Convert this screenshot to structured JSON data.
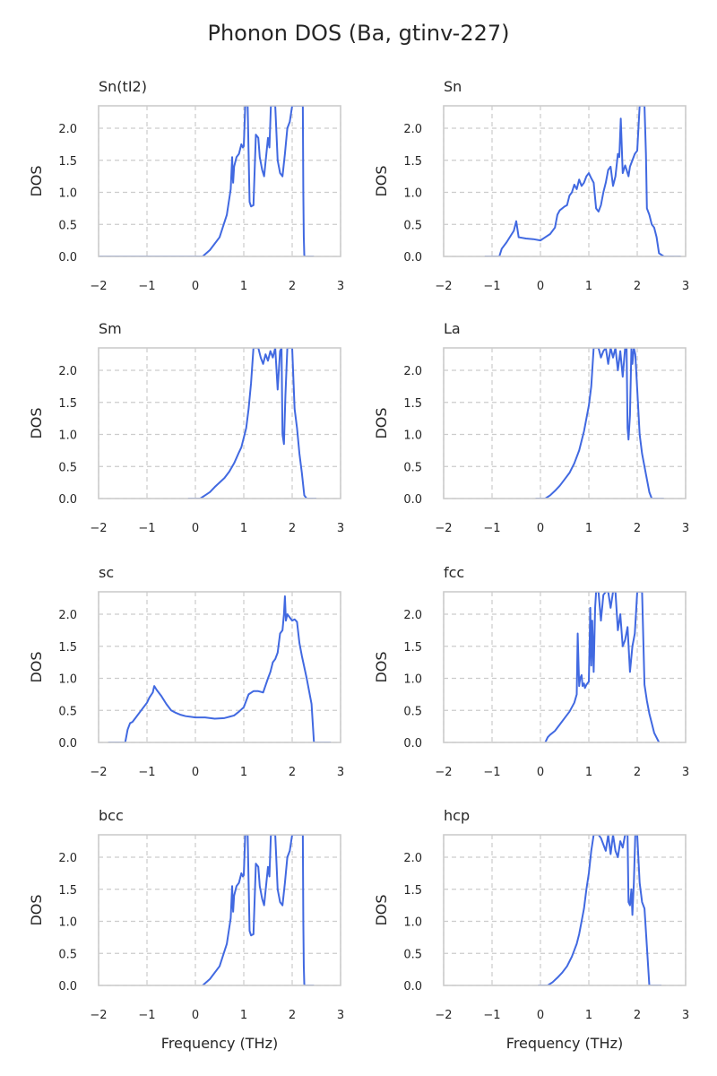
{
  "title": "Phonon DOS (Ba, gtinv-227)",
  "colors": {
    "line": "#4169e1",
    "grid": "#cccccc",
    "frame": "#cccccc",
    "text": "#262626"
  },
  "chart_data": [
    {
      "type": "line",
      "title": "Sn(tI2)",
      "xlabel": "",
      "ylabel": "DOS",
      "xlim": [
        -2,
        3
      ],
      "ylim": [
        0,
        2.35
      ],
      "xticks": [
        -2,
        -1,
        0,
        1,
        2,
        3
      ],
      "yticks": [
        0.0,
        0.5,
        1.0,
        1.5,
        2.0
      ],
      "xtick_labels": [
        "−2",
        "−1",
        "0",
        "1",
        "2",
        "3"
      ],
      "ytick_labels": [
        "0.0",
        "0.5",
        "1.0",
        "1.5",
        "2.0"
      ],
      "grid": true,
      "series": [
        {
          "x": [
            -2.0,
            0.15,
            0.3,
            0.5,
            0.65,
            0.73,
            0.76,
            0.77,
            0.78,
            0.8,
            0.85,
            0.9,
            0.95,
            0.98,
            1.0,
            1.03,
            1.06,
            1.08,
            1.1,
            1.12,
            1.15,
            1.2,
            1.25,
            1.3,
            1.33,
            1.38,
            1.42,
            1.46,
            1.5,
            1.53,
            1.56,
            1.6,
            1.65,
            1.7,
            1.75,
            1.8,
            1.85,
            1.9,
            1.95,
            2.0,
            2.05,
            2.1,
            2.15,
            2.2,
            2.22,
            2.23,
            2.24,
            2.25,
            2.26,
            2.3,
            2.45
          ],
          "y": [
            0.0,
            0.0,
            0.1,
            0.3,
            0.65,
            1.05,
            1.55,
            1.3,
            1.15,
            1.4,
            1.55,
            1.6,
            1.75,
            1.7,
            1.72,
            2.35,
            2.35,
            2.35,
            1.6,
            0.85,
            0.78,
            0.8,
            1.9,
            1.85,
            1.55,
            1.35,
            1.25,
            1.55,
            1.85,
            1.7,
            2.35,
            2.35,
            2.35,
            1.5,
            1.3,
            1.25,
            1.6,
            2.0,
            2.1,
            2.35,
            2.35,
            2.35,
            2.35,
            2.35,
            2.35,
            1.0,
            0.3,
            0.02,
            0.0,
            0.0,
            0.0
          ]
        }
      ]
    },
    {
      "type": "line",
      "title": "Sn",
      "xlabel": "",
      "ylabel": "DOS",
      "xlim": [
        -2,
        3
      ],
      "ylim": [
        0,
        2.35
      ],
      "xticks": [
        -2,
        -1,
        0,
        1,
        2,
        3
      ],
      "yticks": [
        0.0,
        0.5,
        1.0,
        1.5,
        2.0
      ],
      "xtick_labels": [
        "−2",
        "−1",
        "0",
        "1",
        "2",
        "3"
      ],
      "ytick_labels": [
        "0.0",
        "0.5",
        "1.0",
        "1.5",
        "2.0"
      ],
      "grid": true,
      "series": [
        {
          "x": [
            -1.15,
            -0.85,
            -0.8,
            -0.7,
            -0.55,
            -0.5,
            -0.45,
            -0.3,
            -0.15,
            0.0,
            0.1,
            0.2,
            0.3,
            0.35,
            0.4,
            0.5,
            0.55,
            0.6,
            0.65,
            0.7,
            0.75,
            0.8,
            0.85,
            0.9,
            0.95,
            1.0,
            1.05,
            1.1,
            1.15,
            1.2,
            1.25,
            1.3,
            1.35,
            1.4,
            1.45,
            1.5,
            1.55,
            1.6,
            1.63,
            1.66,
            1.7,
            1.75,
            1.78,
            1.8,
            1.82,
            1.85,
            1.9,
            1.95,
            2.0,
            2.05,
            2.1,
            2.15,
            2.18,
            2.2,
            2.25,
            2.3,
            2.35,
            2.4,
            2.45,
            2.55,
            2.9
          ],
          "y": [
            0.0,
            0.0,
            0.12,
            0.22,
            0.4,
            0.55,
            0.3,
            0.28,
            0.27,
            0.25,
            0.3,
            0.35,
            0.45,
            0.65,
            0.72,
            0.78,
            0.8,
            0.95,
            1.0,
            1.12,
            1.05,
            1.2,
            1.1,
            1.15,
            1.25,
            1.3,
            1.22,
            1.15,
            0.75,
            0.7,
            0.8,
            1.0,
            1.15,
            1.35,
            1.4,
            1.1,
            1.25,
            1.6,
            1.55,
            2.15,
            1.3,
            1.42,
            1.35,
            1.3,
            1.25,
            1.4,
            1.5,
            1.6,
            1.65,
            2.35,
            2.35,
            2.35,
            1.6,
            0.75,
            0.65,
            0.5,
            0.45,
            0.3,
            0.05,
            0.0,
            0.0
          ]
        }
      ]
    },
    {
      "type": "line",
      "title": "Sm",
      "xlabel": "",
      "ylabel": "DOS",
      "xlim": [
        -2,
        3
      ],
      "ylim": [
        0,
        2.35
      ],
      "xticks": [
        -2,
        -1,
        0,
        1,
        2,
        3
      ],
      "yticks": [
        0.0,
        0.5,
        1.0,
        1.5,
        2.0
      ],
      "xtick_labels": [
        "−2",
        "−1",
        "0",
        "1",
        "2",
        "3"
      ],
      "ytick_labels": [
        "0.0",
        "0.5",
        "1.0",
        "1.5",
        "2.0"
      ],
      "grid": true,
      "series": [
        {
          "x": [
            -0.15,
            0.1,
            0.2,
            0.3,
            0.4,
            0.5,
            0.6,
            0.7,
            0.8,
            0.9,
            0.95,
            1.0,
            1.05,
            1.1,
            1.15,
            1.2,
            1.25,
            1.3,
            1.35,
            1.4,
            1.45,
            1.5,
            1.55,
            1.6,
            1.65,
            1.7,
            1.75,
            1.78,
            1.8,
            1.83,
            1.86,
            1.9,
            1.95,
            2.0,
            2.05,
            2.1,
            2.15,
            2.2,
            2.25,
            2.3,
            2.5
          ],
          "y": [
            0.0,
            0.0,
            0.05,
            0.1,
            0.18,
            0.25,
            0.32,
            0.42,
            0.55,
            0.72,
            0.8,
            0.95,
            1.1,
            1.4,
            1.8,
            2.35,
            2.35,
            2.35,
            2.2,
            2.1,
            2.25,
            2.15,
            2.3,
            2.2,
            2.35,
            1.7,
            2.3,
            2.35,
            1.0,
            0.85,
            1.6,
            2.35,
            2.35,
            2.35,
            1.4,
            1.1,
            0.7,
            0.4,
            0.05,
            0.0,
            0.0
          ]
        }
      ]
    },
    {
      "type": "line",
      "title": "La",
      "xlabel": "",
      "ylabel": "DOS",
      "xlim": [
        -2,
        3
      ],
      "ylim": [
        0,
        2.35
      ],
      "xticks": [
        -2,
        -1,
        0,
        1,
        2,
        3
      ],
      "yticks": [
        0.0,
        0.5,
        1.0,
        1.5,
        2.0
      ],
      "xtick_labels": [
        "−2",
        "−1",
        "0",
        "1",
        "2",
        "3"
      ],
      "ytick_labels": [
        "0.0",
        "0.5",
        "1.0",
        "1.5",
        "2.0"
      ],
      "grid": true,
      "series": [
        {
          "x": [
            -0.1,
            0.1,
            0.2,
            0.3,
            0.4,
            0.5,
            0.6,
            0.7,
            0.8,
            0.85,
            0.9,
            0.95,
            1.0,
            1.05,
            1.1,
            1.15,
            1.2,
            1.25,
            1.3,
            1.35,
            1.4,
            1.45,
            1.5,
            1.55,
            1.6,
            1.65,
            1.7,
            1.75,
            1.78,
            1.8,
            1.82,
            1.85,
            1.88,
            1.9,
            1.93,
            1.96,
            2.0,
            2.05,
            2.1,
            2.15,
            2.2,
            2.25,
            2.3,
            2.55
          ],
          "y": [
            0.0,
            0.0,
            0.05,
            0.12,
            0.2,
            0.3,
            0.4,
            0.55,
            0.75,
            0.9,
            1.05,
            1.25,
            1.45,
            1.75,
            2.35,
            2.35,
            2.35,
            2.2,
            2.3,
            2.35,
            2.1,
            2.35,
            2.2,
            2.35,
            2.0,
            2.3,
            1.9,
            2.35,
            2.35,
            1.1,
            0.92,
            1.3,
            2.35,
            2.1,
            2.35,
            2.25,
            1.7,
            1.0,
            0.7,
            0.5,
            0.3,
            0.1,
            0.0,
            0.0
          ]
        }
      ]
    },
    {
      "type": "line",
      "title": "sc",
      "xlabel": "",
      "ylabel": "DOS",
      "xlim": [
        -2,
        3
      ],
      "ylim": [
        0,
        2.35
      ],
      "xticks": [
        -2,
        -1,
        0,
        1,
        2,
        3
      ],
      "yticks": [
        0.0,
        0.5,
        1.0,
        1.5,
        2.0
      ],
      "xtick_labels": [
        "−2",
        "−1",
        "0",
        "1",
        "2",
        "3"
      ],
      "ytick_labels": [
        "0.0",
        "0.5",
        "1.0",
        "1.5",
        "2.0"
      ],
      "grid": true,
      "series": [
        {
          "x": [
            -1.8,
            -1.45,
            -1.4,
            -1.35,
            -1.3,
            -1.2,
            -1.1,
            -1.0,
            -0.95,
            -0.88,
            -0.85,
            -0.8,
            -0.7,
            -0.6,
            -0.5,
            -0.4,
            -0.3,
            -0.2,
            -0.1,
            0.0,
            0.2,
            0.4,
            0.6,
            0.7,
            0.8,
            0.9,
            1.0,
            1.05,
            1.1,
            1.2,
            1.3,
            1.4,
            1.5,
            1.55,
            1.6,
            1.65,
            1.7,
            1.75,
            1.8,
            1.83,
            1.85,
            1.87,
            1.9,
            1.95,
            2.0,
            2.05,
            2.1,
            2.15,
            2.2,
            2.3,
            2.4,
            2.45,
            2.8
          ],
          "y": [
            0.0,
            0.0,
            0.2,
            0.3,
            0.32,
            0.42,
            0.52,
            0.62,
            0.7,
            0.78,
            0.88,
            0.82,
            0.72,
            0.6,
            0.5,
            0.46,
            0.43,
            0.41,
            0.4,
            0.39,
            0.39,
            0.37,
            0.38,
            0.4,
            0.42,
            0.48,
            0.55,
            0.65,
            0.75,
            0.8,
            0.8,
            0.78,
            1.0,
            1.1,
            1.25,
            1.3,
            1.4,
            1.7,
            1.75,
            2.0,
            2.28,
            1.9,
            2.0,
            1.95,
            1.9,
            1.92,
            1.88,
            1.55,
            1.35,
            1.0,
            0.6,
            0.0,
            0.0
          ]
        }
      ]
    },
    {
      "type": "line",
      "title": "fcc",
      "xlabel": "",
      "ylabel": "DOS",
      "xlim": [
        -2,
        3
      ],
      "ylim": [
        0,
        2.35
      ],
      "xticks": [
        -2,
        -1,
        0,
        1,
        2,
        3
      ],
      "yticks": [
        0.0,
        0.5,
        1.0,
        1.5,
        2.0
      ],
      "xtick_labels": [
        "−2",
        "−1",
        "0",
        "1",
        "2",
        "3"
      ],
      "ytick_labels": [
        "0.0",
        "0.5",
        "1.0",
        "1.5",
        "2.0"
      ],
      "grid": true,
      "series": [
        {
          "x": [
            0.1,
            0.15,
            0.2,
            0.3,
            0.4,
            0.5,
            0.6,
            0.7,
            0.75,
            0.77,
            0.8,
            0.82,
            0.85,
            0.87,
            0.9,
            0.92,
            0.95,
            1.0,
            1.03,
            1.05,
            1.07,
            1.1,
            1.13,
            1.15,
            1.2,
            1.25,
            1.3,
            1.35,
            1.4,
            1.45,
            1.5,
            1.55,
            1.6,
            1.65,
            1.7,
            1.75,
            1.8,
            1.85,
            1.9,
            1.95,
            2.0,
            2.05,
            2.1,
            2.15,
            2.2,
            2.25,
            2.3,
            2.35,
            2.45
          ],
          "y": [
            0.0,
            0.08,
            0.12,
            0.18,
            0.28,
            0.38,
            0.48,
            0.62,
            0.75,
            1.7,
            0.88,
            1.0,
            1.05,
            0.88,
            0.92,
            0.85,
            0.9,
            0.95,
            2.1,
            1.2,
            1.9,
            1.1,
            2.1,
            2.35,
            2.35,
            1.9,
            2.3,
            2.35,
            2.35,
            2.1,
            2.35,
            2.35,
            1.75,
            2.0,
            1.5,
            1.6,
            1.8,
            1.1,
            1.5,
            1.7,
            2.35,
            2.35,
            2.35,
            0.9,
            0.65,
            0.45,
            0.3,
            0.15,
            0.0
          ]
        }
      ]
    },
    {
      "type": "line",
      "title": "bcc",
      "xlabel": "Frequency (THz)",
      "ylabel": "DOS",
      "xlim": [
        -2,
        3
      ],
      "ylim": [
        0,
        2.35
      ],
      "xticks": [
        -2,
        -1,
        0,
        1,
        2,
        3
      ],
      "yticks": [
        0.0,
        0.5,
        1.0,
        1.5,
        2.0
      ],
      "xtick_labels": [
        "−2",
        "−1",
        "0",
        "1",
        "2",
        "3"
      ],
      "ytick_labels": [
        "0.0",
        "0.5",
        "1.0",
        "1.5",
        "2.0"
      ],
      "grid": true,
      "series": [
        {
          "x": [
            0.15,
            0.3,
            0.5,
            0.65,
            0.73,
            0.76,
            0.77,
            0.78,
            0.8,
            0.85,
            0.9,
            0.95,
            0.98,
            1.0,
            1.03,
            1.06,
            1.08,
            1.1,
            1.12,
            1.15,
            1.2,
            1.25,
            1.3,
            1.33,
            1.38,
            1.42,
            1.46,
            1.5,
            1.53,
            1.56,
            1.6,
            1.65,
            1.7,
            1.75,
            1.8,
            1.85,
            1.9,
            1.95,
            2.0,
            2.05,
            2.1,
            2.15,
            2.2,
            2.22,
            2.23,
            2.24,
            2.25,
            2.26,
            2.3,
            2.45
          ],
          "y": [
            0.0,
            0.1,
            0.3,
            0.65,
            1.05,
            1.55,
            1.3,
            1.15,
            1.4,
            1.55,
            1.6,
            1.75,
            1.7,
            1.72,
            2.35,
            2.35,
            2.35,
            1.6,
            0.85,
            0.78,
            0.8,
            1.9,
            1.85,
            1.55,
            1.35,
            1.25,
            1.55,
            1.85,
            1.7,
            2.35,
            2.35,
            2.35,
            1.5,
            1.3,
            1.25,
            1.6,
            2.0,
            2.1,
            2.35,
            2.35,
            2.35,
            2.35,
            2.35,
            2.35,
            1.0,
            0.3,
            0.02,
            0.0,
            0.0,
            0.0
          ]
        }
      ]
    },
    {
      "type": "line",
      "title": "hcp",
      "xlabel": "Frequency (THz)",
      "ylabel": "DOS",
      "xlim": [
        -2,
        3
      ],
      "ylim": [
        0,
        2.35
      ],
      "xticks": [
        -2,
        -1,
        0,
        1,
        2,
        3
      ],
      "yticks": [
        0.0,
        0.5,
        1.0,
        1.5,
        2.0
      ],
      "xtick_labels": [
        "−2",
        "−1",
        "0",
        "1",
        "2",
        "3"
      ],
      "ytick_labels": [
        "0.0",
        "0.5",
        "1.0",
        "1.5",
        "2.0"
      ],
      "grid": true,
      "series": [
        {
          "x": [
            -0.05,
            0.15,
            0.25,
            0.35,
            0.45,
            0.55,
            0.65,
            0.75,
            0.8,
            0.85,
            0.9,
            0.95,
            1.0,
            1.05,
            1.1,
            1.15,
            1.2,
            1.25,
            1.3,
            1.35,
            1.4,
            1.45,
            1.5,
            1.55,
            1.6,
            1.65,
            1.7,
            1.75,
            1.8,
            1.82,
            1.85,
            1.88,
            1.9,
            1.93,
            1.96,
            2.0,
            2.05,
            2.1,
            2.15,
            2.2,
            2.25,
            2.5
          ],
          "y": [
            0.0,
            0.0,
            0.05,
            0.12,
            0.2,
            0.3,
            0.45,
            0.65,
            0.8,
            1.0,
            1.2,
            1.5,
            1.75,
            2.1,
            2.35,
            2.35,
            2.35,
            2.3,
            2.2,
            2.1,
            2.35,
            2.05,
            2.35,
            2.1,
            2.0,
            2.25,
            2.15,
            2.35,
            2.35,
            1.3,
            1.25,
            1.5,
            1.1,
            1.6,
            2.35,
            2.35,
            1.6,
            1.3,
            1.2,
            0.6,
            0.0,
            0.0
          ]
        }
      ]
    }
  ]
}
